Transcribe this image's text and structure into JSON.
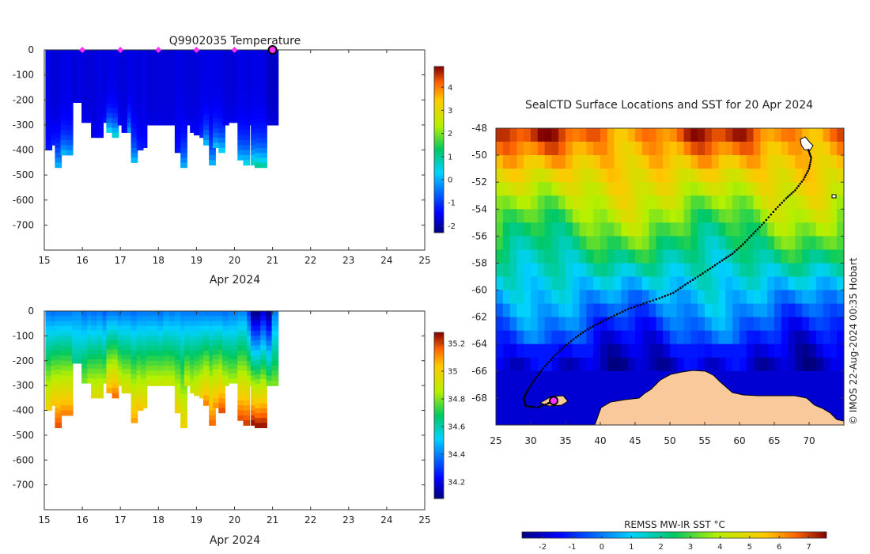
{
  "chart_data": [
    {
      "type": "heatmap",
      "title": "Q9902035  Temperature",
      "xlabel": "Apr 2024",
      "ylabel": "",
      "x_ticks": [
        "15",
        "16",
        "17",
        "18",
        "19",
        "20",
        "21",
        "22",
        "23",
        "24",
        "25"
      ],
      "xlim": [
        15,
        25
      ],
      "y_ticks": [
        "0",
        "-100",
        "-200",
        "-300",
        "-400",
        "-500",
        "-600",
        "-700"
      ],
      "ylim": [
        -800,
        0
      ],
      "colorbar": {
        "ticks": [
          "-2",
          "-1",
          "0",
          "1",
          "2",
          "3",
          "4"
        ],
        "range": [
          -2.3,
          4.9
        ]
      },
      "surfacing_markers_x": [
        16,
        17,
        18,
        19,
        20
      ],
      "current_position_x": 21,
      "profiles": [
        {
          "x": 15.05,
          "depth": 400,
          "surf": -1.6,
          "deep": -1.2
        },
        {
          "x": 15.2,
          "depth": 380,
          "surf": -1.7,
          "deep": -1.0
        },
        {
          "x": 15.3,
          "depth": 470,
          "surf": -1.7,
          "deep": 0.4
        },
        {
          "x": 15.45,
          "depth": 420,
          "surf": -1.6,
          "deep": 0.5
        },
        {
          "x": 15.6,
          "depth": 420,
          "surf": -1.6,
          "deep": 0.3
        },
        {
          "x": 15.75,
          "depth": 210,
          "surf": -1.7,
          "deep": -1.6
        },
        {
          "x": 15.9,
          "depth": 210,
          "surf": -1.6,
          "deep": -1.6
        },
        {
          "x": 16.0,
          "depth": 290,
          "surf": -1.7,
          "deep": -1.5
        },
        {
          "x": 16.15,
          "depth": 290,
          "surf": -1.7,
          "deep": -1.5
        },
        {
          "x": 16.25,
          "depth": 350,
          "surf": -1.7,
          "deep": -1.5
        },
        {
          "x": 16.4,
          "depth": 350,
          "surf": -1.6,
          "deep": -1.4
        },
        {
          "x": 16.55,
          "depth": 290,
          "surf": -1.7,
          "deep": -1.2
        },
        {
          "x": 16.65,
          "depth": 330,
          "surf": -1.6,
          "deep": 1.0
        },
        {
          "x": 16.8,
          "depth": 350,
          "surf": -1.6,
          "deep": 1.2
        },
        {
          "x": 16.95,
          "depth": 300,
          "surf": -1.7,
          "deep": -1.3
        },
        {
          "x": 17.05,
          "depth": 330,
          "surf": -1.7,
          "deep": -1.4
        },
        {
          "x": 17.2,
          "depth": 330,
          "surf": -1.6,
          "deep": 0.3
        },
        {
          "x": 17.3,
          "depth": 450,
          "surf": -1.6,
          "deep": 0.5
        },
        {
          "x": 17.45,
          "depth": 400,
          "surf": -1.7,
          "deep": -1.0
        },
        {
          "x": 17.55,
          "depth": 390,
          "surf": -1.6,
          "deep": -1.2
        },
        {
          "x": 17.7,
          "depth": 300,
          "surf": -1.7,
          "deep": -1.6
        },
        {
          "x": 17.85,
          "depth": 300,
          "surf": -1.7,
          "deep": -1.6
        },
        {
          "x": 18.0,
          "depth": 300,
          "surf": -1.7,
          "deep": -1.6
        },
        {
          "x": 18.15,
          "depth": 300,
          "surf": -1.7,
          "deep": -1.6
        },
        {
          "x": 18.3,
          "depth": 300,
          "surf": -1.7,
          "deep": -1.6
        },
        {
          "x": 18.45,
          "depth": 410,
          "surf": -1.6,
          "deep": -1.2
        },
        {
          "x": 18.6,
          "depth": 470,
          "surf": -1.6,
          "deep": 0.3
        },
        {
          "x": 18.7,
          "depth": 300,
          "surf": -1.7,
          "deep": -1.5
        },
        {
          "x": 18.85,
          "depth": 330,
          "surf": -1.7,
          "deep": -1.4
        },
        {
          "x": 18.95,
          "depth": 340,
          "surf": -1.7,
          "deep": -1.3
        },
        {
          "x": 19.1,
          "depth": 350,
          "surf": -1.6,
          "deep": -1.0
        },
        {
          "x": 19.2,
          "depth": 380,
          "surf": -1.6,
          "deep": 0.6
        },
        {
          "x": 19.35,
          "depth": 460,
          "surf": -1.6,
          "deep": 0.4
        },
        {
          "x": 19.45,
          "depth": 390,
          "surf": -1.6,
          "deep": 0.6
        },
        {
          "x": 19.6,
          "depth": 410,
          "surf": -1.6,
          "deep": 0.8
        },
        {
          "x": 19.7,
          "depth": 300,
          "surf": -1.7,
          "deep": -1.4
        },
        {
          "x": 19.85,
          "depth": 290,
          "surf": -1.7,
          "deep": -1.5
        },
        {
          "x": 19.95,
          "depth": 290,
          "surf": -1.7,
          "deep": -1.5
        },
        {
          "x": 20.1,
          "depth": 440,
          "surf": -1.6,
          "deep": 0.5
        },
        {
          "x": 20.25,
          "depth": 460,
          "surf": -1.6,
          "deep": 0.9
        },
        {
          "x": 20.35,
          "depth": 300,
          "surf": -1.7,
          "deep": -1.3
        },
        {
          "x": 20.45,
          "depth": 460,
          "surf": -1.6,
          "deep": 1.2
        },
        {
          "x": 20.55,
          "depth": 470,
          "surf": -1.6,
          "deep": 1.6
        },
        {
          "x": 20.7,
          "depth": 470,
          "surf": -1.6,
          "deep": 1.4
        },
        {
          "x": 20.85,
          "depth": 300,
          "surf": -1.8,
          "deep": -1.6
        },
        {
          "x": 21.0,
          "depth": 300,
          "surf": -1.8,
          "deep": -1.6
        }
      ]
    },
    {
      "type": "heatmap",
      "title": "",
      "xlabel": "Apr 2024",
      "ylabel": "",
      "x_ticks": [
        "15",
        "16",
        "17",
        "18",
        "19",
        "20",
        "21",
        "22",
        "23",
        "24",
        "25"
      ],
      "xlim": [
        15,
        25
      ],
      "y_ticks": [
        "0",
        "-100",
        "-200",
        "-300",
        "-400",
        "-500",
        "-600",
        "-700"
      ],
      "ylim": [
        -800,
        0
      ],
      "colorbar": {
        "ticks": [
          "34.2",
          "34.4",
          "34.6",
          "34.8",
          "35",
          "35.2"
        ],
        "range": [
          34.08,
          35.28
        ]
      },
      "profiles": [
        {
          "x": 15.05,
          "depth": 400,
          "surf": 34.4,
          "deep": 35.0
        },
        {
          "x": 15.2,
          "depth": 380,
          "surf": 34.38,
          "deep": 35.05
        },
        {
          "x": 15.3,
          "depth": 470,
          "surf": 34.4,
          "deep": 35.18
        },
        {
          "x": 15.45,
          "depth": 420,
          "surf": 34.4,
          "deep": 35.12
        },
        {
          "x": 15.6,
          "depth": 420,
          "surf": 34.4,
          "deep": 35.12
        },
        {
          "x": 15.75,
          "depth": 210,
          "surf": 34.42,
          "deep": 34.65
        },
        {
          "x": 15.9,
          "depth": 210,
          "surf": 34.42,
          "deep": 34.65
        },
        {
          "x": 16.0,
          "depth": 290,
          "surf": 34.38,
          "deep": 34.8
        },
        {
          "x": 16.15,
          "depth": 290,
          "surf": 34.4,
          "deep": 34.85
        },
        {
          "x": 16.25,
          "depth": 350,
          "surf": 34.38,
          "deep": 34.95
        },
        {
          "x": 16.4,
          "depth": 350,
          "surf": 34.4,
          "deep": 34.95
        },
        {
          "x": 16.55,
          "depth": 290,
          "surf": 34.35,
          "deep": 34.85
        },
        {
          "x": 16.65,
          "depth": 330,
          "surf": 34.4,
          "deep": 35.08
        },
        {
          "x": 16.8,
          "depth": 350,
          "surf": 34.4,
          "deep": 35.15
        },
        {
          "x": 16.95,
          "depth": 300,
          "surf": 34.38,
          "deep": 34.95
        },
        {
          "x": 17.05,
          "depth": 330,
          "surf": 34.4,
          "deep": 34.95
        },
        {
          "x": 17.2,
          "depth": 330,
          "surf": 34.4,
          "deep": 34.95
        },
        {
          "x": 17.3,
          "depth": 450,
          "surf": 34.38,
          "deep": 35.08
        },
        {
          "x": 17.45,
          "depth": 400,
          "surf": 34.4,
          "deep": 35.05
        },
        {
          "x": 17.55,
          "depth": 390,
          "surf": 34.4,
          "deep": 35.0
        },
        {
          "x": 17.7,
          "depth": 300,
          "surf": 34.4,
          "deep": 34.9
        },
        {
          "x": 17.85,
          "depth": 300,
          "surf": 34.4,
          "deep": 34.9
        },
        {
          "x": 18.0,
          "depth": 300,
          "surf": 34.38,
          "deep": 34.9
        },
        {
          "x": 18.15,
          "depth": 300,
          "surf": 34.42,
          "deep": 34.9
        },
        {
          "x": 18.3,
          "depth": 300,
          "surf": 34.4,
          "deep": 34.9
        },
        {
          "x": 18.45,
          "depth": 410,
          "surf": 34.42,
          "deep": 35.0
        },
        {
          "x": 18.6,
          "depth": 470,
          "surf": 34.4,
          "deep": 35.0
        },
        {
          "x": 18.7,
          "depth": 300,
          "surf": 34.4,
          "deep": 34.9
        },
        {
          "x": 18.85,
          "depth": 330,
          "surf": 34.4,
          "deep": 34.9
        },
        {
          "x": 18.95,
          "depth": 340,
          "surf": 34.4,
          "deep": 34.95
        },
        {
          "x": 19.1,
          "depth": 350,
          "surf": 34.4,
          "deep": 35.0
        },
        {
          "x": 19.2,
          "depth": 380,
          "surf": 34.4,
          "deep": 35.12
        },
        {
          "x": 19.35,
          "depth": 460,
          "surf": 34.4,
          "deep": 35.15
        },
        {
          "x": 19.45,
          "depth": 390,
          "surf": 34.4,
          "deep": 35.1
        },
        {
          "x": 19.6,
          "depth": 410,
          "surf": 34.4,
          "deep": 35.18
        },
        {
          "x": 19.7,
          "depth": 300,
          "surf": 34.38,
          "deep": 34.9
        },
        {
          "x": 19.85,
          "depth": 290,
          "surf": 34.4,
          "deep": 34.85
        },
        {
          "x": 19.95,
          "depth": 290,
          "surf": 34.4,
          "deep": 34.85
        },
        {
          "x": 20.1,
          "depth": 440,
          "surf": 34.42,
          "deep": 35.18
        },
        {
          "x": 20.25,
          "depth": 460,
          "surf": 34.42,
          "deep": 35.2
        },
        {
          "x": 20.35,
          "depth": 300,
          "surf": 34.3,
          "deep": 34.9
        },
        {
          "x": 20.45,
          "depth": 460,
          "surf": 34.1,
          "deep": 35.25
        },
        {
          "x": 20.55,
          "depth": 470,
          "surf": 34.1,
          "deep": 35.25
        },
        {
          "x": 20.7,
          "depth": 470,
          "surf": 34.2,
          "deep": 35.25
        },
        {
          "x": 20.85,
          "depth": 300,
          "surf": 34.1,
          "deep": 34.8
        },
        {
          "x": 21.0,
          "depth": 300,
          "surf": 34.4,
          "deep": 34.8
        }
      ]
    },
    {
      "type": "heatmap",
      "title": "SealCTD Surface Locations and SST for 20 Apr 2024",
      "xlabel": "",
      "ylabel": "",
      "x_ticks": [
        "25",
        "30",
        "35",
        "40",
        "45",
        "50",
        "55",
        "60",
        "65",
        "70"
      ],
      "xlim": [
        25,
        75
      ],
      "y_ticks": [
        "-48",
        "-50",
        "-52",
        "-54",
        "-56",
        "-58",
        "-60",
        "-62",
        "-64",
        "-66",
        "-68"
      ],
      "ylim": [
        -70,
        -48
      ],
      "colorbar": {
        "label": "REMSS MW-IR SST °C",
        "ticks": [
          "-2",
          "-1",
          "0",
          "1",
          "2",
          "3",
          "4",
          "5",
          "6",
          "7"
        ],
        "range": [
          -2.7,
          7.6
        ]
      },
      "credit": "© IMOS 22-Aug-2024 00:35 Hobart",
      "track": [
        [
          69.9,
          -49.6
        ],
        [
          70.3,
          -50.2
        ],
        [
          70.0,
          -51.0
        ],
        [
          69.2,
          -51.8
        ],
        [
          68.0,
          -52.6
        ],
        [
          66.7,
          -53.2
        ],
        [
          65.2,
          -54.0
        ],
        [
          63.5,
          -55.0
        ],
        [
          62.0,
          -55.8
        ],
        [
          60.5,
          -56.6
        ],
        [
          59.0,
          -57.3
        ],
        [
          57.5,
          -57.8
        ],
        [
          55.8,
          -58.4
        ],
        [
          54.0,
          -59.0
        ],
        [
          52.2,
          -59.6
        ],
        [
          50.5,
          -60.2
        ],
        [
          48.5,
          -60.6
        ],
        [
          46.2,
          -61.0
        ],
        [
          44.0,
          -61.4
        ],
        [
          42.0,
          -61.9
        ],
        [
          40.0,
          -62.4
        ],
        [
          38.2,
          -62.9
        ],
        [
          36.5,
          -63.5
        ],
        [
          34.8,
          -64.2
        ],
        [
          33.2,
          -65.0
        ],
        [
          31.8,
          -65.8
        ],
        [
          30.6,
          -66.6
        ],
        [
          29.6,
          -67.4
        ],
        [
          29.0,
          -68.0
        ],
        [
          29.3,
          -68.6
        ],
        [
          31.0,
          -68.7
        ],
        [
          32.5,
          -68.4
        ],
        [
          33.3,
          -68.2
        ]
      ],
      "current_position": [
        33.3,
        -68.2
      ]
    }
  ]
}
